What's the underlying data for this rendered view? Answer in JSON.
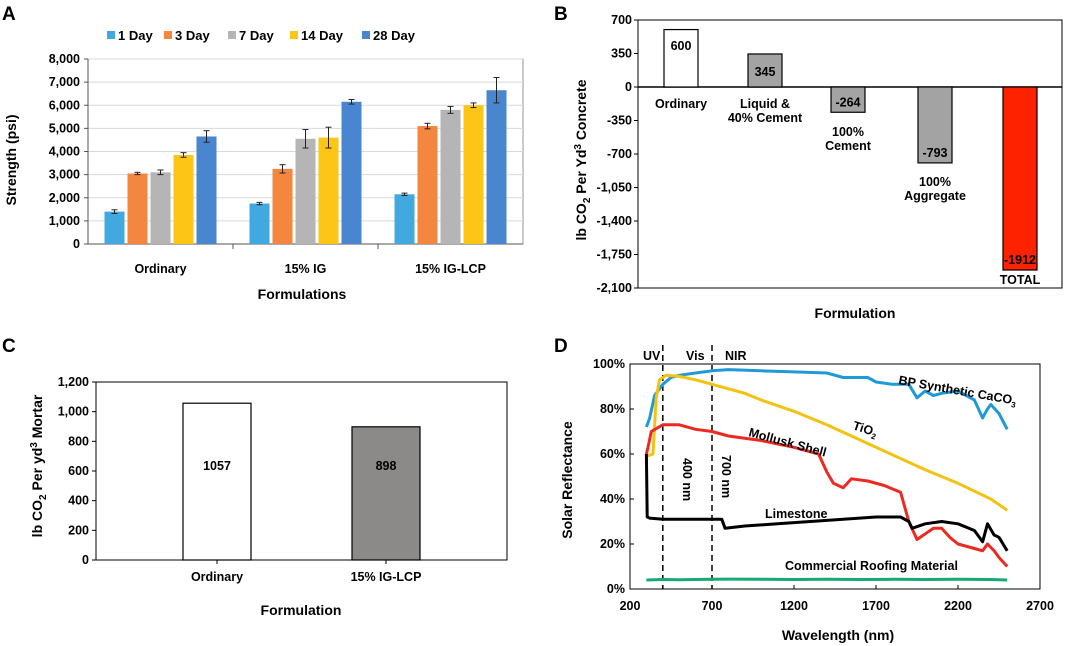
{
  "colors": {
    "day1": "#41a9e0",
    "day3": "#f48740",
    "day7": "#b5b5b5",
    "day14": "#fdc516",
    "day28": "#4a86d0",
    "white_bar": "#ffffff",
    "gray_bar": "#a3a3a3",
    "dark_gray_bar": "#8c8989",
    "total_red": "#ff2200",
    "line_blue": "#1f9ad6",
    "line_yellow": "#f3c213",
    "line_red": "#ec2a22",
    "line_black": "#000000",
    "line_green": "#17a874"
  },
  "chart_data": [
    {
      "panel": "A",
      "type": "bar",
      "categories": [
        "Ordinary",
        "15% IG",
        "15% IG-LCP"
      ],
      "series": [
        {
          "name": "1 Day",
          "values": [
            1400,
            1750,
            2150
          ],
          "errors": [
            80,
            50,
            50
          ]
        },
        {
          "name": "3 Day",
          "values": [
            3050,
            3250,
            5100
          ],
          "errors": [
            50,
            180,
            120
          ]
        },
        {
          "name": "7 Day",
          "values": [
            3100,
            4550,
            5800
          ],
          "errors": [
            100,
            400,
            150
          ]
        },
        {
          "name": "14 Day",
          "values": [
            3850,
            4600,
            6000
          ],
          "errors": [
            100,
            450,
            100
          ]
        },
        {
          "name": "28 Day",
          "values": [
            4650,
            6150,
            6650
          ],
          "errors": [
            250,
            100,
            550
          ]
        }
      ],
      "xlabel": "Formulations",
      "ylabel": "Strength (psi)",
      "ylim": [
        0,
        8000
      ],
      "yticks": [
        0,
        1000,
        2000,
        3000,
        4000,
        5000,
        6000,
        7000,
        8000
      ],
      "ytick_labels": [
        "0",
        "1,000",
        "2,000",
        "3,000",
        "4,000",
        "5,000",
        "6,000",
        "7,000",
        "8,000"
      ],
      "legend_position": "top"
    },
    {
      "panel": "B",
      "type": "bar",
      "categories": [
        "Ordinary",
        "Liquid & 40% Cement",
        "100% Cement",
        "100% Aggregate",
        "TOTAL"
      ],
      "category_lines": [
        [
          "Ordinary"
        ],
        [
          "Liquid &",
          "40% Cement"
        ],
        [
          "100%",
          "Cement"
        ],
        [
          "100%",
          "Aggregate"
        ],
        [
          "TOTAL"
        ]
      ],
      "values": [
        600,
        345,
        -264,
        -793,
        -1912
      ],
      "value_labels": [
        "600",
        "345",
        "-264",
        "-793",
        "-1912"
      ],
      "xlabel": "Formulation",
      "ylabel": "lb CO2 Per Yd3 Concrete",
      "ylim": [
        -2100,
        700
      ],
      "yticks": [
        700,
        350,
        0,
        -350,
        -700,
        -1050,
        -1400,
        -1750,
        -2100
      ],
      "ytick_labels": [
        "700",
        "350",
        "0",
        "-350",
        "-700",
        "-1,050",
        "-1,400",
        "-1,750",
        "-2,100"
      ]
    },
    {
      "panel": "C",
      "type": "bar",
      "categories": [
        "Ordinary",
        "15% IG-LCP"
      ],
      "values": [
        1057,
        898
      ],
      "value_labels": [
        "1057",
        "898"
      ],
      "xlabel": "Formulation",
      "ylabel": "lb CO2 Per yd3 Mortar",
      "ylim": [
        0,
        1200
      ],
      "yticks": [
        0,
        200,
        400,
        600,
        800,
        1000,
        1200
      ],
      "ytick_labels": [
        "0",
        "200",
        "400",
        "600",
        "800",
        "1,000",
        "1,200"
      ]
    },
    {
      "panel": "D",
      "type": "line",
      "xlabel": "Wavelength (nm)",
      "ylabel": "Solar Reflectance",
      "xlim": [
        200,
        2700
      ],
      "ylim": [
        0,
        100
      ],
      "xticks": [
        200,
        700,
        1200,
        1700,
        2200,
        2700
      ],
      "xtick_labels": [
        "200",
        "700",
        "1200",
        "1700",
        "2200",
        "2700"
      ],
      "yticks": [
        0,
        20,
        40,
        60,
        80,
        100
      ],
      "ytick_labels": [
        "0%",
        "20%",
        "40%",
        "60%",
        "80%",
        "100%"
      ],
      "region_labels": [
        "UV",
        "Vis",
        "NIR"
      ],
      "vlines": [
        {
          "x": 400,
          "label": "400 nm"
        },
        {
          "x": 700,
          "label": "700 nm"
        }
      ],
      "series": [
        {
          "name": "BP Synthetic CaCO3",
          "color_key": "line_blue",
          "x": [
            300,
            320,
            350,
            400,
            450,
            500,
            600,
            700,
            800,
            1000,
            1200,
            1400,
            1500,
            1650,
            1700,
            1800,
            1900,
            1950,
            2000,
            2050,
            2100,
            2200,
            2300,
            2350,
            2380,
            2400,
            2450,
            2500
          ],
          "y": [
            72,
            76,
            86,
            91,
            94,
            95,
            96,
            97,
            97.5,
            97,
            96.5,
            96,
            94,
            94,
            92,
            91,
            91,
            85,
            88,
            86,
            87,
            88,
            84,
            76,
            80,
            82,
            78,
            71
          ]
        },
        {
          "name": "TiO2",
          "color_key": "line_yellow",
          "x": [
            300,
            340,
            360,
            380,
            420,
            500,
            600,
            700,
            800,
            900,
            1000,
            1200,
            1400,
            1700,
            2000,
            2200,
            2400,
            2500
          ],
          "y": [
            59,
            60,
            85,
            93,
            95,
            94.5,
            93,
            91,
            89,
            87,
            84,
            79,
            73,
            63,
            53,
            47,
            40,
            35
          ]
        },
        {
          "name": "Mollusk Shell",
          "color_key": "line_red",
          "x": [
            300,
            310,
            330,
            400,
            500,
            600,
            700,
            800,
            1000,
            1200,
            1350,
            1400,
            1440,
            1500,
            1550,
            1650,
            1750,
            1850,
            1900,
            1950,
            2050,
            2100,
            2150,
            2200,
            2300,
            2350,
            2380,
            2420,
            2450,
            2500
          ],
          "y": [
            60,
            63,
            70,
            73,
            73,
            71,
            70,
            68,
            66,
            63,
            60,
            52,
            47,
            45,
            49,
            48,
            46,
            43,
            30,
            22,
            27,
            27,
            23,
            20,
            18,
            17,
            20,
            17,
            14,
            10
          ]
        },
        {
          "name": "Limestone",
          "color_key": "line_black",
          "x": [
            300,
            305,
            320,
            400,
            700,
            760,
            780,
            900,
            1100,
            1300,
            1500,
            1700,
            1850,
            1900,
            1920,
            2000,
            2100,
            2200,
            2300,
            2350,
            2380,
            2420,
            2450,
            2500
          ],
          "y": [
            60,
            32,
            31.5,
            31,
            31,
            31,
            27,
            28,
            29,
            30,
            31,
            32,
            32,
            30,
            27,
            29,
            30,
            29,
            26,
            21,
            29,
            24,
            23,
            17
          ]
        },
        {
          "name": "Commercial Roofing Material",
          "color_key": "line_green",
          "x": [
            300,
            400,
            500,
            600,
            700,
            800,
            1000,
            1200,
            1400,
            1600,
            1800,
            2000,
            2200,
            2400,
            2500
          ],
          "y": [
            4,
            4.2,
            4.1,
            4.2,
            4.3,
            4.4,
            4.3,
            4.2,
            4.3,
            4.2,
            4.3,
            4.2,
            4.3,
            4.2,
            4
          ]
        }
      ]
    }
  ],
  "panels": {
    "a": {
      "letter": "A",
      "xlabel": "Formulations",
      "ylabel": "Strength (psi)"
    },
    "b": {
      "letter": "B",
      "xlabel": "Formulation",
      "ylabel_main": "lb CO",
      "ylabel_sub": "2",
      "ylabel_mid": " Per Yd",
      "ylabel_sup": "3",
      "ylabel_end": " Concrete"
    },
    "c": {
      "letter": "C",
      "xlabel": "Formulation",
      "ylabel_main": "lb CO",
      "ylabel_sub": "2",
      "ylabel_mid": " Per  yd",
      "ylabel_sup": "3",
      "ylabel_end": " Mortar"
    },
    "d": {
      "letter": "D",
      "xlabel": "Wavelength (nm)",
      "ylabel": "Solar Reflectance",
      "label_uv": "UV",
      "label_vis": "Vis",
      "label_nir": "NIR",
      "label_400": "400 nm",
      "label_700": "700 nm",
      "series_label_caco3_main": "BP Synthetic CaCO",
      "series_label_caco3_sub": "3",
      "series_label_tio2_main": "TiO",
      "series_label_tio2_sub": "2",
      "series_label_mollusk": "Mollusk Shell",
      "series_label_limestone": "Limestone",
      "series_label_roofing": "Commercial Roofing Material"
    }
  }
}
